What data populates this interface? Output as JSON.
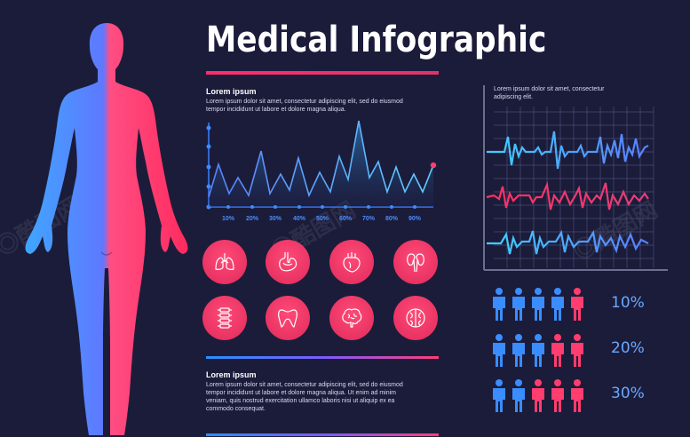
{
  "title": "Medical Infographic",
  "chart_block": {
    "heading": "Lorem ipsum",
    "text": "Lorem ipsum dolor sit amet, consectetur adipiscing elit, sed do eiusmod tempor incididunt ut labore et dolore magna aliqua.",
    "tick_labels": [
      "10%",
      "20%",
      "30%",
      "40%",
      "50%",
      "60%",
      "70%",
      "80%",
      "90%"
    ]
  },
  "ecg_block": {
    "text": "Lorem ipsum dolor sit amet, consectetur adipiscing elit."
  },
  "bottom_block": {
    "heading": "Lorem ipsum",
    "text": "Lorem ipsum dolor sit amet, consectetur adipiscing elit, sed do eiusmod tempor incididunt ut labore et dolore magna aliqua. Ut enim ad minim veniam, quis nostrud exercitation ullamco laboris nisi ut aliquip ex ea commodo consequat."
  },
  "organs": [
    "lungs-icon",
    "stomach-icon",
    "heart-icon",
    "kidneys-icon",
    "spine-icon",
    "tooth-icon",
    "brain-icon",
    "brain-cells-icon"
  ],
  "population": [
    {
      "label": "10%",
      "highlighted": 1
    },
    {
      "label": "20%",
      "highlighted": 2
    },
    {
      "label": "30%",
      "highlighted": 3
    }
  ],
  "colors": {
    "accent_red": "#ff3d6e",
    "accent_blue": "#3a8dff",
    "background": "#1b1c3a"
  }
}
